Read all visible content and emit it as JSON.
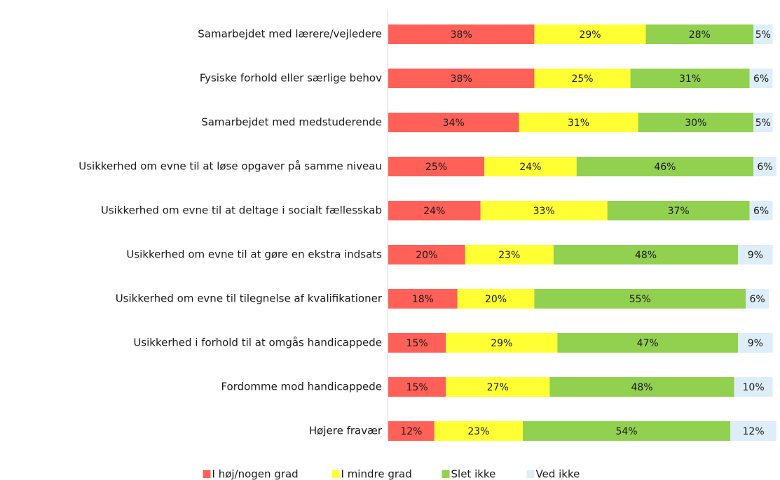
{
  "chart_data": {
    "type": "stacked-bar-horizontal",
    "categories": [
      "Samarbejdet med lærere/vejledere",
      "Fysiske forhold eller særlige behov",
      "Samarbejdet med medstuderende",
      "Usikkerhed om evne til at løse opgaver på samme niveau",
      "Usikkerhed om evne til at deltage i socialt fællesskab",
      "Usikkerhed om evne til at gøre en ekstra indsats",
      "Usikkerhed om evne til tilegnelse af kvalifikationer",
      "Usikkerhed i forhold til at omgås handicappede",
      "Fordomme mod handicappede",
      "Højere fravær"
    ],
    "series": [
      {
        "name": "I høj/nogen grad",
        "color": "#ff6058",
        "values": [
          38,
          38,
          34,
          25,
          24,
          20,
          18,
          15,
          15,
          12
        ],
        "value_labels": [
          "38%",
          "38%",
          "34%",
          "25%",
          "24%",
          "20%",
          "18%",
          "15%",
          "15%",
          "12%"
        ]
      },
      {
        "name": "I mindre grad",
        "color": "#ffff33",
        "values": [
          29,
          25,
          31,
          24,
          33,
          23,
          20,
          29,
          27,
          23
        ],
        "value_labels": [
          "29%",
          "25%",
          "31%",
          "24%",
          "33%",
          "23%",
          "20%",
          "29%",
          "27%",
          "23%"
        ]
      },
      {
        "name": "Slet ikke",
        "color": "#92d050",
        "values": [
          28,
          31,
          30,
          46,
          37,
          48,
          55,
          47,
          48,
          54
        ],
        "value_labels": [
          "28%",
          "31%",
          "30%",
          "46%",
          "37%",
          "48%",
          "55%",
          "47%",
          "48%",
          "54%"
        ]
      },
      {
        "name": "Ved ikke",
        "color": "#ddeef8",
        "values": [
          5,
          6,
          5,
          6,
          6,
          9,
          6,
          9,
          10,
          12
        ],
        "value_labels": [
          "5%",
          "6%",
          "5%",
          "6%",
          "6%",
          "9%",
          "6%",
          "9%",
          "10%",
          "12%"
        ]
      }
    ]
  }
}
